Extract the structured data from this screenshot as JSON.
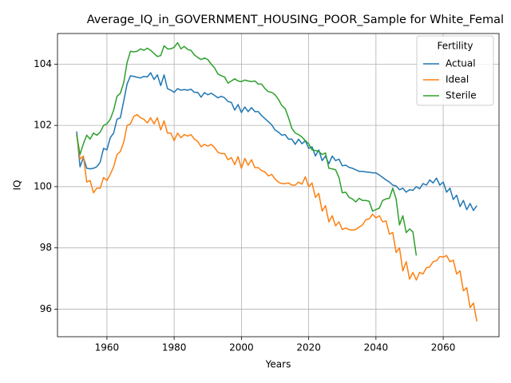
{
  "chart_data": {
    "type": "line",
    "title": "Average_IQ_in_GOVERNMENT_HOUSING_POOR_Sample for White_Femal",
    "x_label": "Years",
    "y_label": "IQ",
    "legend_title": "Fertility",
    "legend": "upper right",
    "grid": true,
    "xlim": [
      1945.3,
      2076.6
    ],
    "ylim": [
      95.1,
      105.0
    ],
    "xticks": [
      1960,
      1980,
      2000,
      2020,
      2040,
      2060
    ],
    "yticks": [
      96,
      98,
      100,
      102,
      104
    ],
    "x": [
      1951,
      1952,
      1953,
      1954,
      1955,
      1956,
      1957,
      1958,
      1959,
      1960,
      1961,
      1962,
      1963,
      1964,
      1965,
      1966,
      1967,
      1968,
      1969,
      1970,
      1971,
      1972,
      1973,
      1974,
      1975,
      1976,
      1977,
      1978,
      1979,
      1980,
      1981,
      1982,
      1983,
      1984,
      1985,
      1986,
      1987,
      1988,
      1989,
      1990,
      1991,
      1992,
      1993,
      1994,
      1995,
      1996,
      1997,
      1998,
      1999,
      2000,
      2001,
      2002,
      2003,
      2004,
      2005,
      2006,
      2007,
      2008,
      2009,
      2010,
      2011,
      2012,
      2013,
      2014,
      2015,
      2016,
      2017,
      2018,
      2019,
      2020,
      2021,
      2022,
      2023,
      2024,
      2025,
      2026,
      2027,
      2028,
      2029,
      2030,
      2031,
      2032,
      2033,
      2034,
      2035,
      2036,
      2037,
      2038,
      2039,
      2040,
      2041,
      2042,
      2043,
      2044,
      2045,
      2046,
      2047,
      2048,
      2049,
      2050,
      2051,
      2052,
      2053,
      2054,
      2055,
      2056,
      2057,
      2058,
      2059,
      2060,
      2061,
      2062,
      2063,
      2064,
      2065,
      2066,
      2067,
      2068,
      2069,
      2070
    ],
    "series": [
      {
        "name": "Actual",
        "color": "#1f77b4",
        "values": [
          101.8,
          100.65,
          100.95,
          100.6,
          100.58,
          100.6,
          100.65,
          100.8,
          101.25,
          101.2,
          101.6,
          101.75,
          102.2,
          102.25,
          102.8,
          103.35,
          103.62,
          103.6,
          103.57,
          103.55,
          103.6,
          103.58,
          103.72,
          103.5,
          103.65,
          103.3,
          103.65,
          103.2,
          103.15,
          103.08,
          103.2,
          103.15,
          103.17,
          103.15,
          103.18,
          103.08,
          103.08,
          102.92,
          103.07,
          103.0,
          103.05,
          102.98,
          102.9,
          102.95,
          102.9,
          102.78,
          102.75,
          102.5,
          102.68,
          102.42,
          102.6,
          102.45,
          102.58,
          102.45,
          102.45,
          102.32,
          102.22,
          102.12,
          102.02,
          101.85,
          101.78,
          101.68,
          101.7,
          101.55,
          101.55,
          101.38,
          101.55,
          101.4,
          101.5,
          101.25,
          101.3,
          101.0,
          101.2,
          100.85,
          101.0,
          100.75,
          101.0,
          100.85,
          100.9,
          100.68,
          100.7,
          100.63,
          100.6,
          100.55,
          100.5,
          100.5,
          100.48,
          100.47,
          100.45,
          100.45,
          100.38,
          100.3,
          100.22,
          100.15,
          100.05,
          100.02,
          99.9,
          99.95,
          99.82,
          99.9,
          99.88,
          100.0,
          99.93,
          100.1,
          100.05,
          100.22,
          100.12,
          100.28,
          100.05,
          100.15,
          99.82,
          99.95,
          99.58,
          99.72,
          99.35,
          99.55,
          99.25,
          99.45,
          99.22,
          99.38
        ]
      },
      {
        "name": "Ideal",
        "color": "#ff7f0e",
        "values": [
          101.7,
          100.9,
          101.0,
          100.15,
          100.2,
          99.8,
          99.95,
          99.95,
          100.3,
          100.2,
          100.4,
          100.65,
          101.05,
          101.15,
          101.45,
          102.0,
          102.05,
          102.3,
          102.35,
          102.25,
          102.2,
          102.08,
          102.25,
          102.05,
          102.25,
          101.85,
          102.15,
          101.75,
          101.75,
          101.5,
          101.75,
          101.6,
          101.7,
          101.65,
          101.7,
          101.55,
          101.48,
          101.3,
          101.38,
          101.32,
          101.38,
          101.28,
          101.12,
          101.08,
          101.08,
          100.88,
          100.95,
          100.72,
          100.98,
          100.6,
          100.92,
          100.7,
          100.88,
          100.62,
          100.62,
          100.52,
          100.48,
          100.35,
          100.4,
          100.25,
          100.15,
          100.1,
          100.1,
          100.12,
          100.05,
          100.05,
          100.15,
          100.08,
          100.32,
          100.0,
          100.12,
          99.65,
          99.78,
          99.2,
          99.38,
          98.85,
          99.05,
          98.72,
          98.85,
          98.6,
          98.65,
          98.6,
          98.58,
          98.6,
          98.68,
          98.75,
          98.92,
          98.95,
          99.1,
          98.98,
          99.05,
          98.85,
          98.88,
          98.45,
          98.5,
          97.85,
          98.0,
          97.25,
          97.55,
          96.98,
          97.2,
          96.95,
          97.2,
          97.15,
          97.35,
          97.38,
          97.55,
          97.58,
          97.72,
          97.7,
          97.75,
          97.55,
          97.6,
          97.15,
          97.25,
          96.6,
          96.7,
          96.05,
          96.2,
          95.6
        ]
      },
      {
        "name": "Sterile",
        "color": "#2ca02c",
        "values": [
          101.7,
          101.05,
          101.4,
          101.68,
          101.55,
          101.75,
          101.68,
          101.78,
          102.0,
          102.05,
          102.2,
          102.5,
          102.95,
          103.05,
          103.4,
          104.05,
          104.42,
          104.4,
          104.42,
          104.5,
          104.45,
          104.52,
          104.45,
          104.35,
          104.25,
          104.28,
          104.6,
          104.5,
          104.5,
          104.55,
          104.7,
          104.5,
          104.58,
          104.48,
          104.45,
          104.3,
          104.22,
          104.15,
          104.2,
          104.15,
          104.0,
          103.88,
          103.68,
          103.62,
          103.58,
          103.38,
          103.45,
          103.52,
          103.45,
          103.43,
          103.48,
          103.45,
          103.43,
          103.45,
          103.35,
          103.35,
          103.2,
          103.1,
          103.08,
          103.0,
          102.85,
          102.65,
          102.55,
          102.25,
          101.9,
          101.75,
          101.7,
          101.62,
          101.5,
          101.4,
          101.2,
          101.18,
          101.15,
          101.05,
          101.1,
          100.6,
          100.58,
          100.55,
          100.3,
          99.8,
          99.82,
          99.65,
          99.6,
          99.5,
          99.62,
          99.55,
          99.55,
          99.52,
          99.2,
          99.25,
          99.3,
          99.55,
          99.6,
          99.62,
          99.95,
          99.6,
          98.75,
          99.05,
          98.5,
          98.62,
          98.52,
          97.75,
          null,
          null,
          null,
          null,
          null,
          null,
          null,
          null,
          null,
          null,
          null,
          null,
          null,
          null,
          null,
          null,
          null,
          null
        ]
      }
    ]
  }
}
